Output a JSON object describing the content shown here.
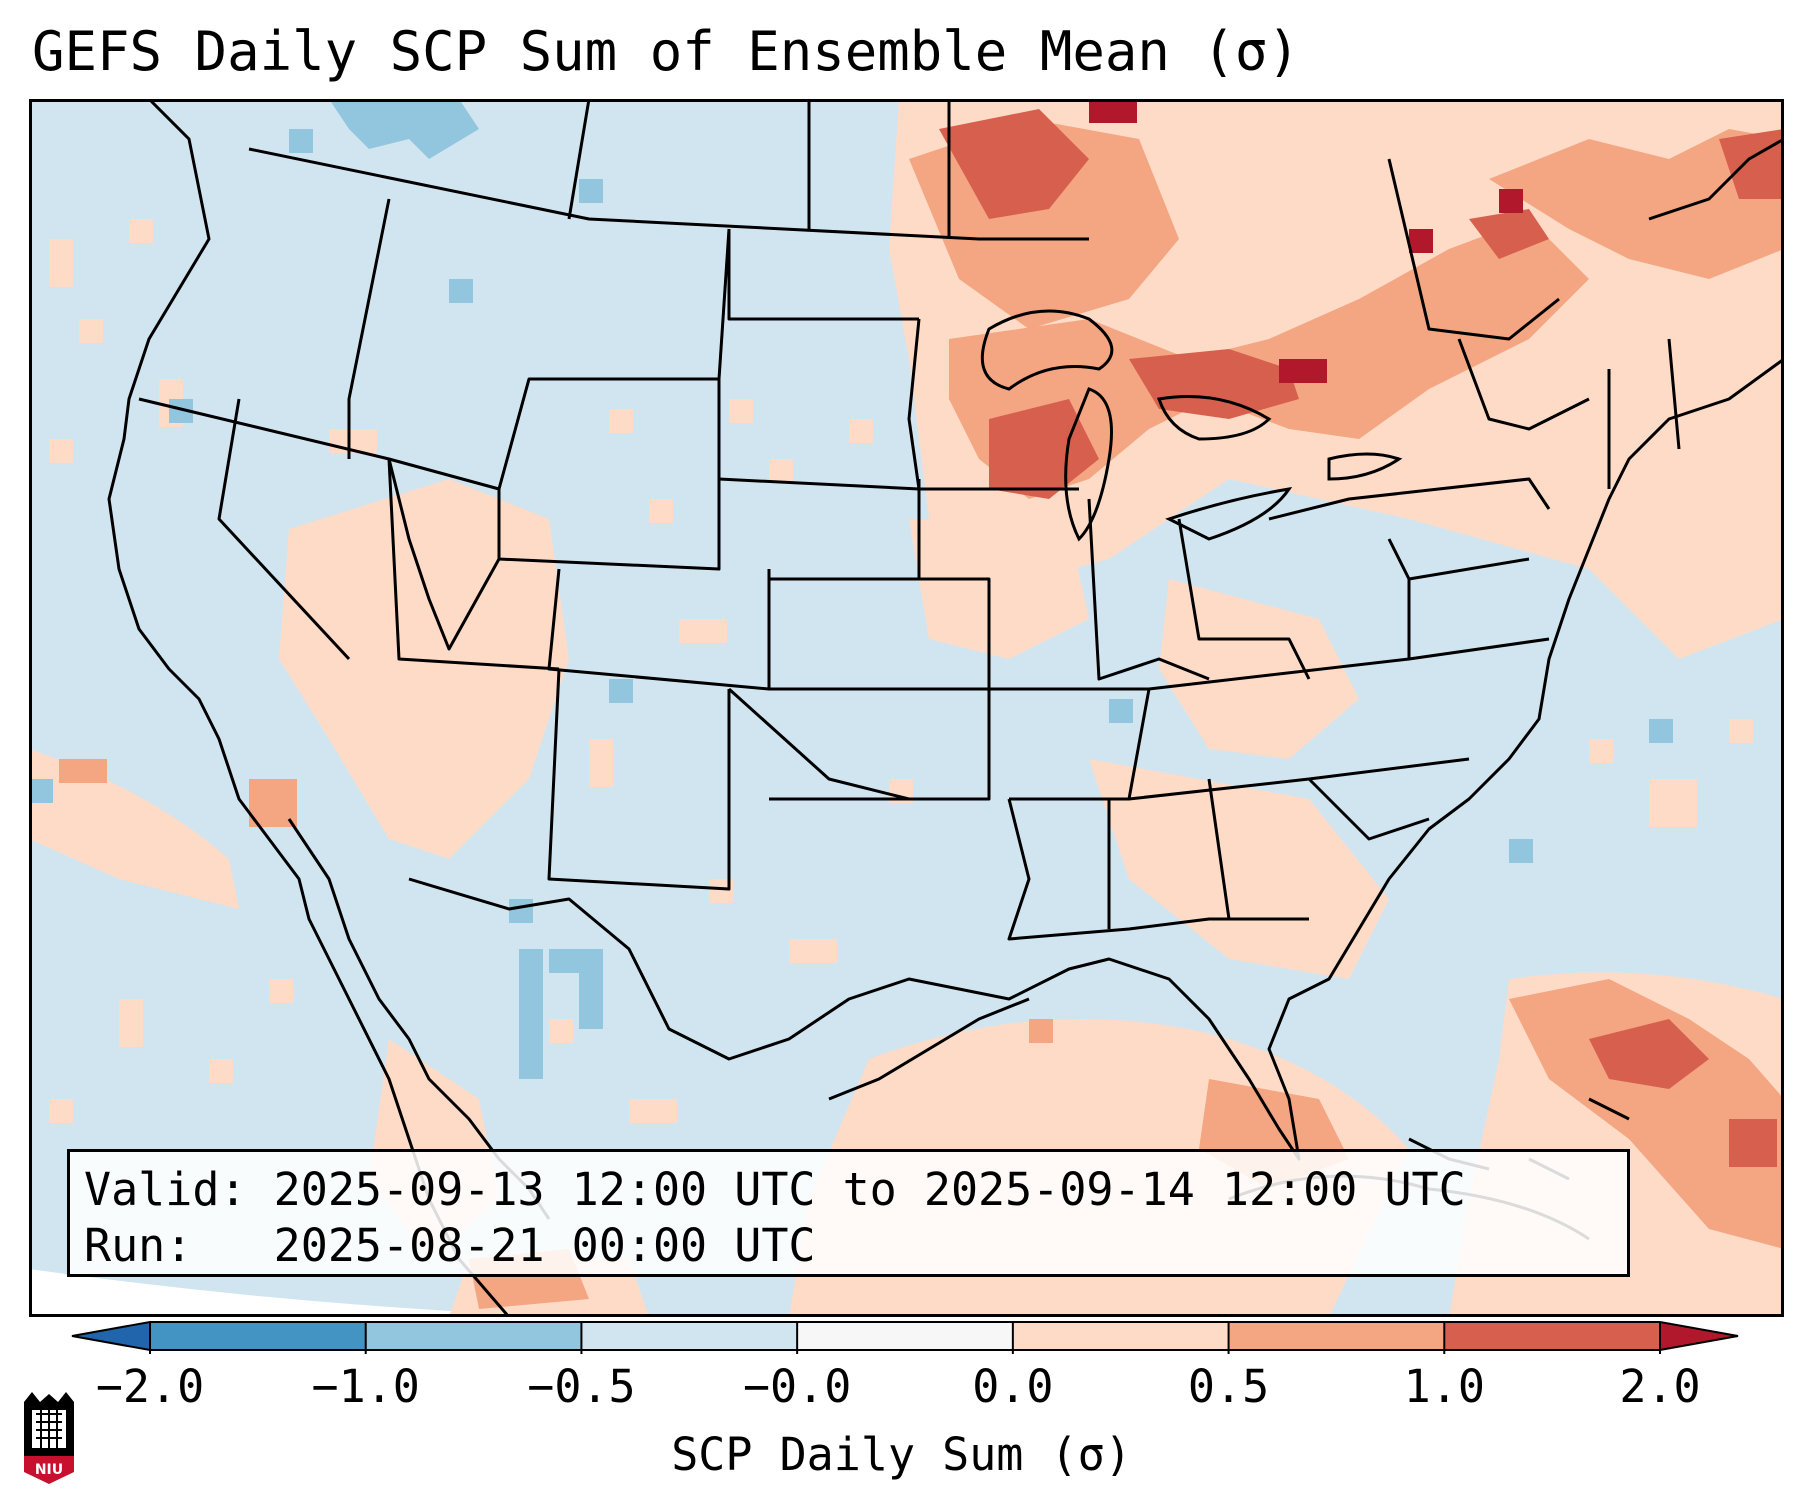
{
  "title": "GEFS Daily SCP Sum of Ensemble Mean (σ)",
  "info": {
    "valid_label": "Valid:",
    "valid_value": "2025-09-13 12:00 UTC to 2025-09-14 12:00 UTC",
    "run_label": "Run:",
    "run_value": "2025-08-21 00:00 UTC"
  },
  "colorbar": {
    "label": "SCP Daily Sum (σ)",
    "ticks": [
      "−2.0",
      "−1.0",
      "−0.5",
      "−0.0",
      "0.0",
      "0.5",
      "1.0",
      "2.0"
    ],
    "bins": [
      {
        "from": "−2.0",
        "to": "−1.0",
        "color": "#4393c3"
      },
      {
        "from": "−1.0",
        "to": "−0.5",
        "color": "#92c5de"
      },
      {
        "from": "−0.5",
        "to": "−0.0",
        "color": "#d1e5f0"
      },
      {
        "from": "−0.0",
        "to": "0.0",
        "color": "#f7f7f7"
      },
      {
        "from": "0.0",
        "to": "0.5",
        "color": "#fddbc7"
      },
      {
        "from": "0.5",
        "to": "1.0",
        "color": "#f4a582"
      },
      {
        "from": "1.0",
        "to": "2.0",
        "color": "#d6604d"
      }
    ],
    "extend_low_color": "#2166ac",
    "extend_high_color": "#b2182b"
  },
  "map": {
    "background_color": "#d1e5f0",
    "positive_regions": [
      "Great Lakes",
      "Upper Midwest",
      "southern Ontario and Quebec",
      "Gulf of Mexico",
      "western Atlantic near the Bahamas",
      "Great Basin"
    ],
    "outside_domain_color": "#ffffff"
  },
  "logo": {
    "text": "NIU",
    "colors": {
      "red": "#c8102e",
      "black": "#000000"
    }
  }
}
